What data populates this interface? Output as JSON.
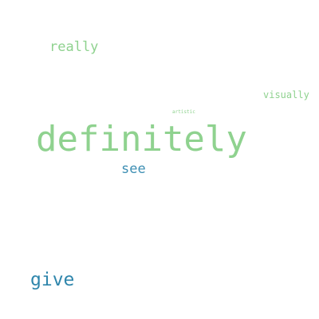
{
  "word_cloud": {
    "words": {
      "definitely": "definitely",
      "really": "really",
      "visually": "visually",
      "artistic": "artistic",
      "see": "see",
      "give": "give"
    },
    "colors": {
      "green": "#8fd28f",
      "blue_light": "#3e8fb3",
      "blue": "#2f86ac",
      "background": "#ffffff"
    }
  }
}
